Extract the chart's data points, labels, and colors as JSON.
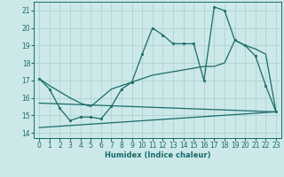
{
  "xlabel": "Humidex (Indice chaleur)",
  "xlim": [
    -0.5,
    23.5
  ],
  "ylim": [
    13.7,
    21.5
  ],
  "xticks": [
    0,
    1,
    2,
    3,
    4,
    5,
    6,
    7,
    8,
    9,
    10,
    11,
    12,
    13,
    14,
    15,
    16,
    17,
    18,
    19,
    20,
    21,
    22,
    23
  ],
  "yticks": [
    14,
    15,
    16,
    17,
    18,
    19,
    20,
    21
  ],
  "bg_color": "#cce8e8",
  "grid_color": "#aacece",
  "line_color": "#1a6b6b",
  "line1_x": [
    0,
    1,
    2,
    3,
    4,
    5,
    6,
    7,
    8,
    9,
    10,
    11,
    12,
    13,
    14,
    15,
    16,
    17,
    18,
    19,
    20,
    21,
    22,
    23
  ],
  "line1_y": [
    17.1,
    16.5,
    15.4,
    14.7,
    14.9,
    14.9,
    14.8,
    15.5,
    16.5,
    16.9,
    18.5,
    20.0,
    19.6,
    19.1,
    19.1,
    19.1,
    17.0,
    21.2,
    21.0,
    19.3,
    19.0,
    18.4,
    16.7,
    15.2
  ],
  "line2_x": [
    0,
    1,
    2,
    3,
    4,
    5,
    6,
    7,
    8,
    9,
    10,
    11,
    12,
    13,
    14,
    15,
    16,
    17,
    18,
    19,
    20,
    21,
    22,
    23
  ],
  "line2_y": [
    17.1,
    16.7,
    16.35,
    16.0,
    15.7,
    15.5,
    16.0,
    16.5,
    16.7,
    16.9,
    17.1,
    17.3,
    17.4,
    17.5,
    17.6,
    17.7,
    17.8,
    17.8,
    18.0,
    19.3,
    19.0,
    18.8,
    18.5,
    15.2
  ],
  "line3_x": [
    0,
    23
  ],
  "line3_y": [
    15.7,
    15.2
  ],
  "line4_x": [
    0,
    23
  ],
  "line4_y": [
    14.3,
    15.2
  ]
}
